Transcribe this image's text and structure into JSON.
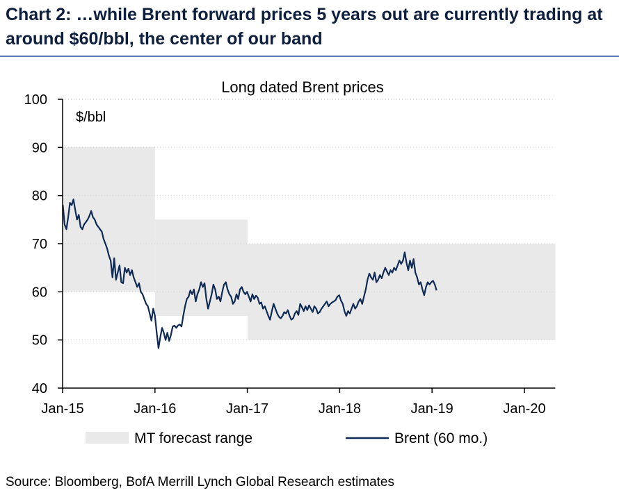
{
  "header": {
    "title": "Chart 2: …while Brent forward prices 5 years out are currently trading at around $60/bbl, the center of our band"
  },
  "source": "Source: Bloomberg, BofA Merrill Lynch Global Research estimates",
  "colors": {
    "band": "#e9e9e9",
    "line": "#0f2a55",
    "axis": "#000000",
    "grid": "#cfcfcf"
  },
  "chart_data": {
    "type": "area",
    "title": "Long dated Brent prices",
    "unit_label": "$/bbl",
    "xlabel": "",
    "ylabel": "",
    "ylim": [
      40,
      100
    ],
    "yticks": [
      "40",
      "50",
      "60",
      "70",
      "80",
      "90",
      "100"
    ],
    "xlim": [
      "2015-01",
      "2020-05"
    ],
    "xticks": [
      "Jan-15",
      "Jan-16",
      "Jan-17",
      "Jan-18",
      "Jan-19",
      "Jan-20"
    ],
    "grid": true,
    "legend_position": "bottom",
    "series": [
      {
        "name": "MT forecast range",
        "kind": "band",
        "segments": [
          {
            "from": "2015-01",
            "to": "2016-01",
            "low": 60,
            "high": 90
          },
          {
            "from": "2016-01",
            "to": "2017-01",
            "low": 55,
            "high": 75
          },
          {
            "from": "2017-01",
            "to": "2020-05",
            "low": 50,
            "high": 70
          }
        ]
      },
      {
        "name": "Brent (60 mo.)",
        "kind": "line",
        "points": [
          [
            "2015-01-02",
            78.0
          ],
          [
            "2015-01-09",
            74.0
          ],
          [
            "2015-01-16",
            73.0
          ],
          [
            "2015-01-23",
            75.5
          ],
          [
            "2015-01-30",
            78.5
          ],
          [
            "2015-02-06",
            78.0
          ],
          [
            "2015-02-13",
            79.2
          ],
          [
            "2015-02-20",
            77.0
          ],
          [
            "2015-02-27",
            75.0
          ],
          [
            "2015-03-06",
            76.0
          ],
          [
            "2015-03-13",
            73.5
          ],
          [
            "2015-03-20",
            73.0
          ],
          [
            "2015-03-27",
            74.0
          ],
          [
            "2015-04-03",
            74.5
          ],
          [
            "2015-04-10",
            75.0
          ],
          [
            "2015-04-17",
            75.8
          ],
          [
            "2015-04-24",
            76.8
          ],
          [
            "2015-05-01",
            75.5
          ],
          [
            "2015-05-08",
            75.0
          ],
          [
            "2015-05-15",
            74.0
          ],
          [
            "2015-05-22",
            73.5
          ],
          [
            "2015-05-29",
            73.0
          ],
          [
            "2015-06-05",
            72.5
          ],
          [
            "2015-06-12",
            71.0
          ],
          [
            "2015-06-19",
            70.0
          ],
          [
            "2015-06-26",
            69.0
          ],
          [
            "2015-07-03",
            67.5
          ],
          [
            "2015-07-10",
            66.5
          ],
          [
            "2015-07-17",
            63.0
          ],
          [
            "2015-07-24",
            67.0
          ],
          [
            "2015-07-31",
            62.5
          ],
          [
            "2015-08-07",
            64.0
          ],
          [
            "2015-08-14",
            65.5
          ],
          [
            "2015-08-21",
            62.0
          ],
          [
            "2015-08-28",
            61.8
          ],
          [
            "2015-09-04",
            65.0
          ],
          [
            "2015-09-11",
            64.0
          ],
          [
            "2015-09-18",
            64.8
          ],
          [
            "2015-09-25",
            63.5
          ],
          [
            "2015-10-02",
            64.5
          ],
          [
            "2015-10-09",
            63.0
          ],
          [
            "2015-10-16",
            62.0
          ],
          [
            "2015-10-23",
            61.0
          ],
          [
            "2015-10-30",
            61.8
          ],
          [
            "2015-11-06",
            60.0
          ],
          [
            "2015-11-13",
            59.5
          ],
          [
            "2015-11-20",
            58.5
          ],
          [
            "2015-11-27",
            57.5
          ],
          [
            "2015-12-04",
            57.0
          ],
          [
            "2015-12-11",
            55.5
          ],
          [
            "2015-12-18",
            54.0
          ],
          [
            "2015-12-25",
            56.5
          ],
          [
            "2016-01-01",
            55.0
          ],
          [
            "2016-01-08",
            51.5
          ],
          [
            "2016-01-15",
            48.3
          ],
          [
            "2016-01-22",
            50.5
          ],
          [
            "2016-01-29",
            52.5
          ],
          [
            "2016-02-05",
            51.5
          ],
          [
            "2016-02-12",
            50.0
          ],
          [
            "2016-02-19",
            51.5
          ],
          [
            "2016-02-26",
            49.8
          ],
          [
            "2016-03-04",
            51.0
          ],
          [
            "2016-03-11",
            52.8
          ],
          [
            "2016-03-18",
            53.0
          ],
          [
            "2016-03-25",
            52.5
          ],
          [
            "2016-04-01",
            53.0
          ],
          [
            "2016-04-08",
            53.2
          ],
          [
            "2016-04-15",
            52.8
          ],
          [
            "2016-04-22",
            55.0
          ],
          [
            "2016-04-29",
            57.0
          ],
          [
            "2016-05-06",
            58.5
          ],
          [
            "2016-05-13",
            59.0
          ],
          [
            "2016-05-20",
            60.3
          ],
          [
            "2016-05-27",
            59.5
          ],
          [
            "2016-06-03",
            60.5
          ],
          [
            "2016-06-10",
            58.0
          ],
          [
            "2016-06-17",
            59.5
          ],
          [
            "2016-06-24",
            60.5
          ],
          [
            "2016-07-01",
            62.0
          ],
          [
            "2016-07-08",
            61.0
          ],
          [
            "2016-07-15",
            61.8
          ],
          [
            "2016-07-22",
            58.5
          ],
          [
            "2016-07-29",
            56.5
          ],
          [
            "2016-08-05",
            58.0
          ],
          [
            "2016-08-12",
            59.5
          ],
          [
            "2016-08-19",
            61.5
          ],
          [
            "2016-08-26",
            60.5
          ],
          [
            "2016-09-02",
            58.5
          ],
          [
            "2016-09-09",
            59.0
          ],
          [
            "2016-09-16",
            58.0
          ],
          [
            "2016-09-23",
            60.0
          ],
          [
            "2016-09-30",
            61.5
          ],
          [
            "2016-10-07",
            62.0
          ],
          [
            "2016-10-14",
            60.5
          ],
          [
            "2016-10-21",
            59.5
          ],
          [
            "2016-10-28",
            59.0
          ],
          [
            "2016-11-04",
            57.5
          ],
          [
            "2016-11-11",
            58.0
          ],
          [
            "2016-11-18",
            59.5
          ],
          [
            "2016-11-25",
            58.5
          ],
          [
            "2016-12-02",
            60.5
          ],
          [
            "2016-12-09",
            61.0
          ],
          [
            "2016-12-16",
            60.0
          ],
          [
            "2016-12-23",
            59.5
          ],
          [
            "2016-12-30",
            60.0
          ],
          [
            "2017-01-06",
            59.0
          ],
          [
            "2017-01-13",
            58.0
          ],
          [
            "2017-01-20",
            59.5
          ],
          [
            "2017-01-27",
            58.5
          ],
          [
            "2017-02-03",
            59.2
          ],
          [
            "2017-02-10",
            58.8
          ],
          [
            "2017-02-17",
            57.5
          ],
          [
            "2017-02-24",
            57.8
          ],
          [
            "2017-03-03",
            56.5
          ],
          [
            "2017-03-10",
            57.0
          ],
          [
            "2017-03-17",
            56.0
          ],
          [
            "2017-03-24",
            55.0
          ],
          [
            "2017-03-31",
            54.2
          ],
          [
            "2017-04-07",
            56.0
          ],
          [
            "2017-04-14",
            57.5
          ],
          [
            "2017-04-21",
            56.5
          ],
          [
            "2017-04-28",
            55.5
          ],
          [
            "2017-05-05",
            54.8
          ],
          [
            "2017-05-12",
            54.5
          ],
          [
            "2017-05-19",
            55.0
          ],
          [
            "2017-05-26",
            55.8
          ],
          [
            "2017-06-02",
            55.5
          ],
          [
            "2017-06-09",
            56.2
          ],
          [
            "2017-06-16",
            55.0
          ],
          [
            "2017-06-23",
            54.2
          ],
          [
            "2017-06-30",
            54.5
          ],
          [
            "2017-07-07",
            55.5
          ],
          [
            "2017-07-14",
            56.0
          ],
          [
            "2017-07-21",
            55.2
          ],
          [
            "2017-07-28",
            57.5
          ],
          [
            "2017-08-04",
            56.8
          ],
          [
            "2017-08-11",
            56.0
          ],
          [
            "2017-08-18",
            57.0
          ],
          [
            "2017-08-25",
            56.2
          ],
          [
            "2017-09-01",
            57.2
          ],
          [
            "2017-09-08",
            56.5
          ],
          [
            "2017-09-15",
            55.8
          ],
          [
            "2017-09-22",
            57.0
          ],
          [
            "2017-09-29",
            56.5
          ],
          [
            "2017-10-06",
            55.5
          ],
          [
            "2017-10-13",
            55.8
          ],
          [
            "2017-10-20",
            56.5
          ],
          [
            "2017-10-27",
            57.0
          ],
          [
            "2017-11-03",
            57.5
          ],
          [
            "2017-11-10",
            58.0
          ],
          [
            "2017-11-17",
            57.0
          ],
          [
            "2017-11-24",
            57.5
          ],
          [
            "2017-12-01",
            57.8
          ],
          [
            "2017-12-08",
            58.0
          ],
          [
            "2017-12-15",
            58.3
          ],
          [
            "2017-12-22",
            59.0
          ],
          [
            "2017-12-29",
            59.3
          ],
          [
            "2018-01-05",
            58.2
          ],
          [
            "2018-01-12",
            57.5
          ],
          [
            "2018-01-19",
            56.0
          ],
          [
            "2018-01-26",
            55.0
          ],
          [
            "2018-02-02",
            56.0
          ],
          [
            "2018-02-09",
            55.5
          ],
          [
            "2018-02-16",
            56.5
          ],
          [
            "2018-02-23",
            57.5
          ],
          [
            "2018-03-02",
            56.5
          ],
          [
            "2018-03-09",
            57.0
          ],
          [
            "2018-03-16",
            58.0
          ],
          [
            "2018-03-23",
            58.5
          ],
          [
            "2018-03-30",
            57.5
          ],
          [
            "2018-04-06",
            59.0
          ],
          [
            "2018-04-13",
            60.5
          ],
          [
            "2018-04-20",
            62.5
          ],
          [
            "2018-04-27",
            63.8
          ],
          [
            "2018-05-04",
            63.0
          ],
          [
            "2018-05-11",
            62.5
          ],
          [
            "2018-05-18",
            64.0
          ],
          [
            "2018-05-25",
            62.0
          ],
          [
            "2018-06-01",
            62.5
          ],
          [
            "2018-06-08",
            63.5
          ],
          [
            "2018-06-15",
            62.8
          ],
          [
            "2018-06-22",
            64.0
          ],
          [
            "2018-06-29",
            65.0
          ],
          [
            "2018-07-06",
            64.2
          ],
          [
            "2018-07-13",
            63.5
          ],
          [
            "2018-07-20",
            64.5
          ],
          [
            "2018-07-27",
            64.0
          ],
          [
            "2018-08-03",
            65.0
          ],
          [
            "2018-08-10",
            64.5
          ],
          [
            "2018-08-17",
            65.5
          ],
          [
            "2018-08-24",
            66.5
          ],
          [
            "2018-08-31",
            65.8
          ],
          [
            "2018-09-07",
            66.5
          ],
          [
            "2018-09-14",
            68.2
          ],
          [
            "2018-09-21",
            66.0
          ],
          [
            "2018-09-28",
            64.5
          ],
          [
            "2018-10-05",
            66.5
          ],
          [
            "2018-10-12",
            65.0
          ],
          [
            "2018-10-19",
            66.8
          ],
          [
            "2018-10-26",
            64.0
          ],
          [
            "2018-11-02",
            63.0
          ],
          [
            "2018-11-09",
            61.5
          ],
          [
            "2018-11-16",
            62.0
          ],
          [
            "2018-11-23",
            60.5
          ],
          [
            "2018-11-30",
            59.3
          ],
          [
            "2018-12-07",
            61.0
          ],
          [
            "2018-12-14",
            62.0
          ],
          [
            "2018-12-21",
            61.5
          ],
          [
            "2018-12-28",
            62.0
          ],
          [
            "2019-01-04",
            62.3
          ],
          [
            "2019-01-11",
            61.5
          ],
          [
            "2019-01-18",
            60.3
          ]
        ]
      }
    ]
  }
}
